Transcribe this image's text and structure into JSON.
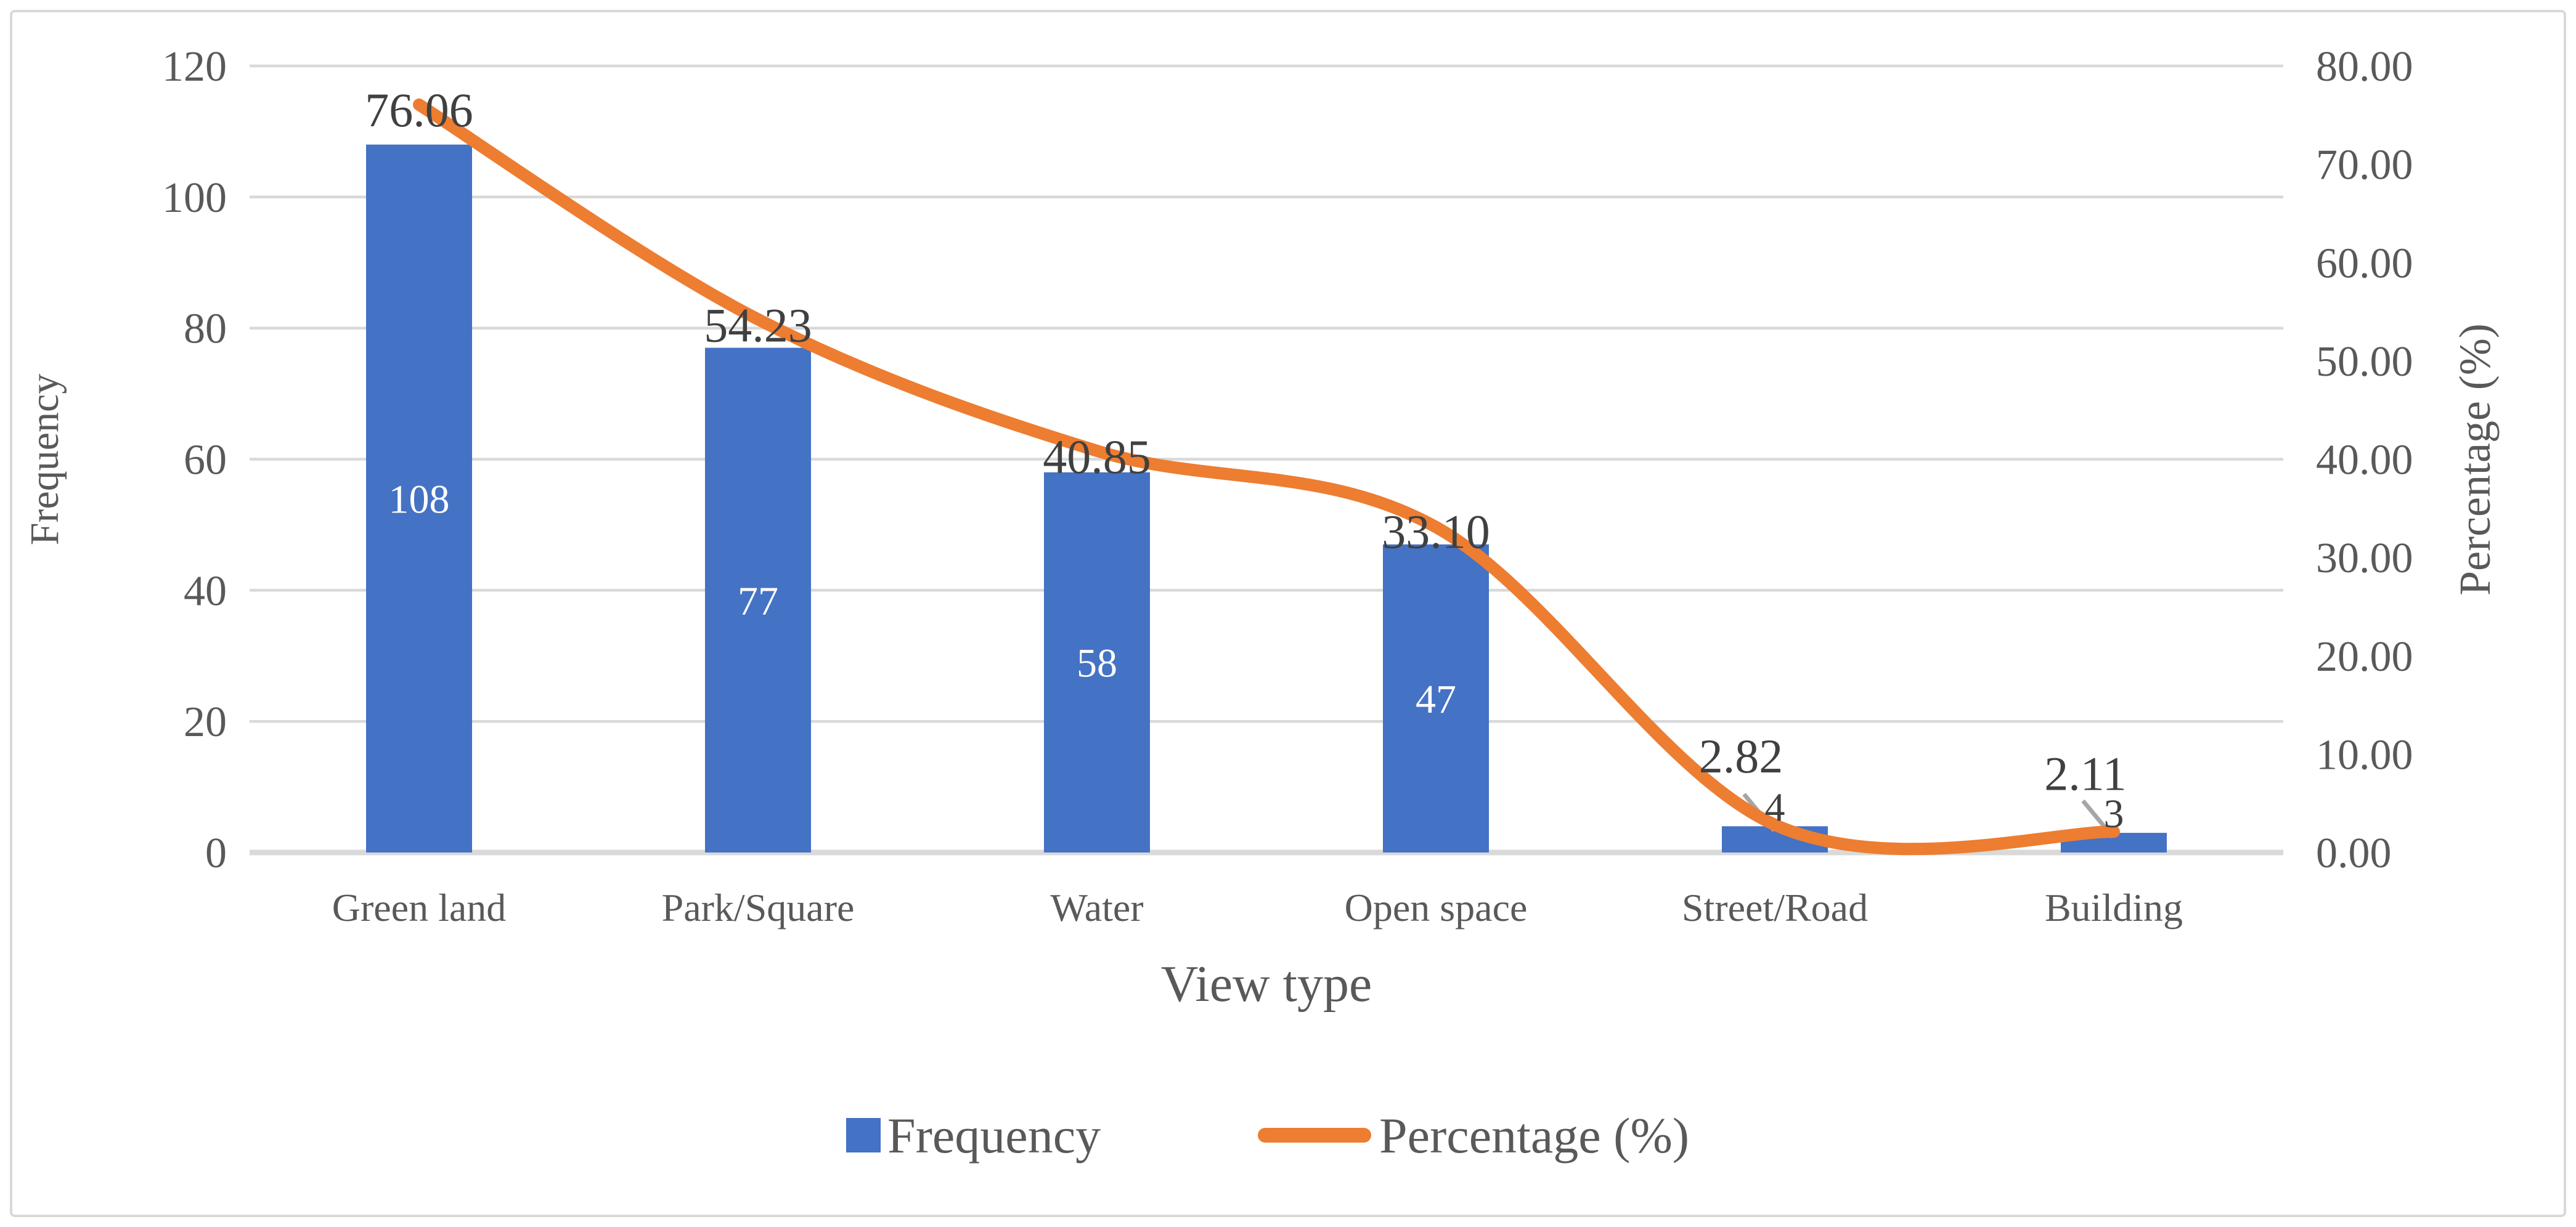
{
  "figure": {
    "background": "#ffffff",
    "border_color": "#d9d9d9"
  },
  "chart_data": {
    "type": "bar+line",
    "title": "",
    "xlabel": "View type",
    "ylabel_left": "Frequency",
    "ylabel_right": "Percentage (%)",
    "categories": [
      "Green land",
      "Park/Square",
      "Water",
      "Open space",
      "Street/Road",
      "Building"
    ],
    "series": [
      {
        "name": "Frequency",
        "type": "bar",
        "axis": "left",
        "color": "#4472C4",
        "values": [
          108,
          77,
          58,
          47,
          4,
          3
        ],
        "data_labels": [
          "108",
          "77",
          "58",
          "47",
          "4",
          "3"
        ]
      },
      {
        "name": "Percentage (%)",
        "type": "line",
        "axis": "right",
        "color": "#ED7D31",
        "smooth": true,
        "values": [
          76.06,
          54.23,
          40.85,
          33.1,
          2.82,
          2.11
        ],
        "data_labels": [
          "76.06",
          "54.23",
          "40.85",
          "33.10",
          "2.82",
          "2.11"
        ]
      }
    ],
    "left_axis": {
      "min": 0,
      "max": 120,
      "step": 20,
      "tick_labels": [
        "0",
        "20",
        "40",
        "60",
        "80",
        "100",
        "120"
      ]
    },
    "right_axis": {
      "min": 0,
      "max": 80,
      "step": 10,
      "tick_labels": [
        "0.00",
        "10.00",
        "20.00",
        "30.00",
        "40.00",
        "50.00",
        "60.00",
        "70.00",
        "80.00"
      ]
    },
    "grid": true,
    "legend_position": "bottom",
    "colors": {
      "grid": "#D9D9D9",
      "axis_text": "#595959",
      "data_label_text": "#404040",
      "bar_inside_label_text": "#FFFFFF",
      "leader_line": "#A6A6A6"
    }
  }
}
